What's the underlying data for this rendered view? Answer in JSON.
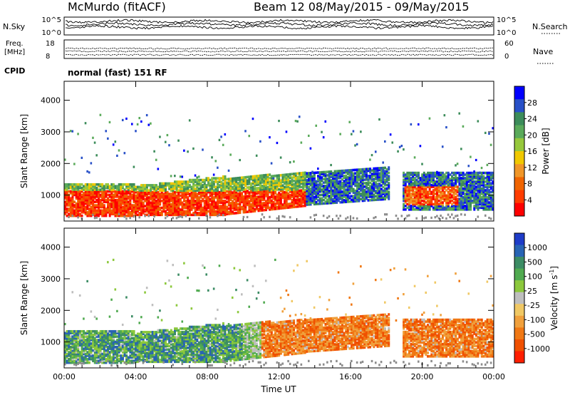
{
  "header": {
    "station": "McMurdo (fitACF)",
    "beam_range": "Beam 12 08/May/2015 - 09/May/2015",
    "cpid_label": "CPID",
    "cpid_value": "normal (fast) 151 RF"
  },
  "strip_nsky": {
    "left_label": "N.Sky",
    "right_label": "N.Search",
    "left_ticks": [
      "10^5",
      "10^0"
    ],
    "right_ticks": [
      "10^5",
      "10^0"
    ]
  },
  "strip_freq": {
    "left_label_1": "Freq.",
    "left_label_2": "[MHz]",
    "right_label": "Nave",
    "left_ticks": [
      "18",
      "8"
    ],
    "right_ticks": [
      "60",
      "0"
    ]
  },
  "chart_data": [
    {
      "type": "heatmap",
      "panel": "power",
      "title": "",
      "xlabel": "",
      "ylabel": "Slant Range [km]",
      "x_ticks": [
        "00:00",
        "04:00",
        "08:00",
        "12:00",
        "16:00",
        "20:00",
        "00:00"
      ],
      "xlim_hours": [
        0,
        24
      ],
      "y_ticks": [
        1000,
        2000,
        3000,
        4000
      ],
      "ylim": [
        180,
        4600
      ],
      "colorbar": {
        "label": "Power [dB]",
        "ticks": [
          "4",
          "8",
          "12",
          "16",
          "20",
          "24",
          "28"
        ],
        "colors": [
          "#0000ff",
          "#2850c8",
          "#3c8c5a",
          "#5aaa5a",
          "#96c83c",
          "#f0c800",
          "#f09628",
          "#f06400",
          "#ff3c00",
          "#ff0000"
        ]
      }
    },
    {
      "type": "heatmap",
      "panel": "velocity",
      "title": "",
      "xlabel": "Time UT",
      "ylabel": "Slant Range [km]",
      "x_ticks": [
        "00:00",
        "04:00",
        "08:00",
        "12:00",
        "16:00",
        "20:00",
        "00:00"
      ],
      "xlim_hours": [
        0,
        24
      ],
      "y_ticks": [
        1000,
        2000,
        3000,
        4000
      ],
      "ylim": [
        180,
        4600
      ],
      "colorbar": {
        "label": "Velocity [m s",
        "label_sup": "-1",
        "label_close": "]",
        "ticks": [
          "1000",
          "500",
          "100",
          "25",
          "-25",
          "-100",
          "-500",
          "-1000"
        ],
        "colors": [
          "#1e3cc8",
          "#2864b4",
          "#3c8c64",
          "#50aa50",
          "#8cc83c",
          "#bebebe",
          "#f0c864",
          "#f0a03c",
          "#f07814",
          "#f05000",
          "#ff1e00"
        ]
      }
    }
  ]
}
